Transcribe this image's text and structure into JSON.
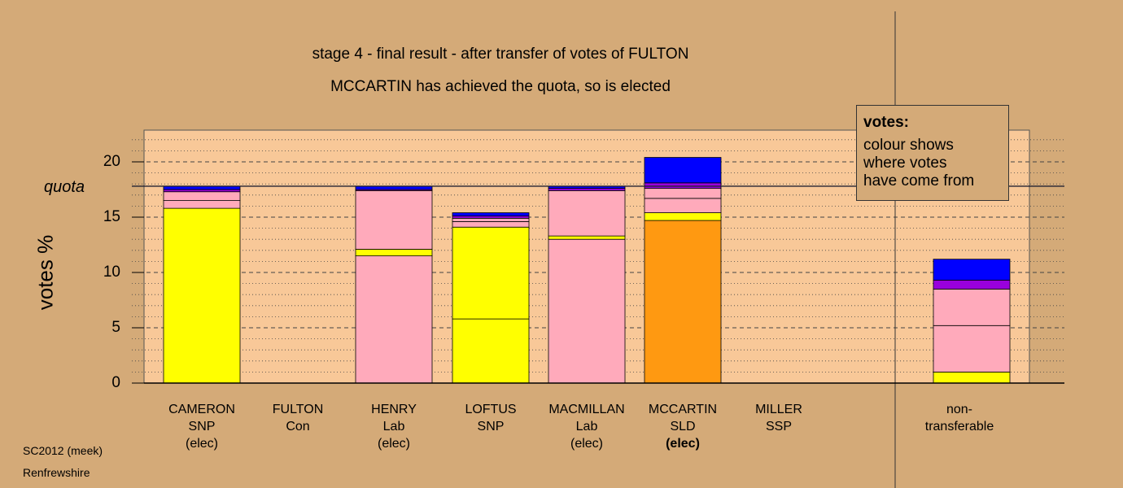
{
  "header": {
    "title": "stage 4 - final result - after transfer of votes of FULTON",
    "subtitle": "MCCARTIN has achieved the quota, so is elected"
  },
  "legend": {
    "title": "votes:",
    "lines": [
      "colour shows",
      "where votes",
      "have come from"
    ]
  },
  "footer": {
    "source": "SC2012 (meek)",
    "area": "Renfrewshire"
  },
  "colors": {
    "yellow": "#ffff00",
    "pink": "#ffaabb",
    "purple": "#9900dd",
    "blue": "#0000ff",
    "orange": "#ff9911",
    "plot_bg": "#f8c898",
    "background": "#d4aa78"
  },
  "chart_data": {
    "type": "bar",
    "stacked": true,
    "ylabel": "votes %",
    "ylim": [
      0,
      23
    ],
    "yticks": [
      0,
      5,
      10,
      15,
      20
    ],
    "quota": 17.8,
    "quota_label": "quota",
    "grid": true,
    "candidates": [
      {
        "name": "CAMERON",
        "party": "SNP",
        "status": "(elec)",
        "bold": false,
        "segments": [
          {
            "color": "yellow",
            "value": 15.8
          },
          {
            "color": "pink",
            "value": 0.7
          },
          {
            "color": "pink",
            "value": 0.8
          },
          {
            "color": "purple",
            "value": 0.2
          },
          {
            "color": "blue",
            "value": 0.3
          }
        ]
      },
      {
        "name": "FULTON",
        "party": "Con",
        "status": "",
        "bold": false,
        "segments": []
      },
      {
        "name": "HENRY",
        "party": "Lab",
        "status": "(elec)",
        "bold": false,
        "segments": [
          {
            "color": "pink",
            "value": 11.5
          },
          {
            "color": "yellow",
            "value": 0.6
          },
          {
            "color": "pink",
            "value": 5.3
          },
          {
            "color": "purple",
            "value": 0.1
          },
          {
            "color": "blue",
            "value": 0.3
          }
        ]
      },
      {
        "name": "LOFTUS",
        "party": "SNP",
        "status": "",
        "bold": false,
        "segments": [
          {
            "color": "yellow",
            "value": 5.8
          },
          {
            "color": "yellow",
            "value": 8.3
          },
          {
            "color": "pink",
            "value": 0.5
          },
          {
            "color": "pink",
            "value": 0.3
          },
          {
            "color": "purple",
            "value": 0.2
          },
          {
            "color": "blue",
            "value": 0.3
          }
        ]
      },
      {
        "name": "MACMILLAN",
        "party": "Lab",
        "status": "(elec)",
        "bold": false,
        "segments": [
          {
            "color": "pink",
            "value": 13.0
          },
          {
            "color": "yellow",
            "value": 0.3
          },
          {
            "color": "pink",
            "value": 4.1
          },
          {
            "color": "purple",
            "value": 0.2
          },
          {
            "color": "blue",
            "value": 0.2
          }
        ]
      },
      {
        "name": "MCCARTIN",
        "party": "SLD",
        "status": "(elec)",
        "bold": true,
        "segments": [
          {
            "color": "orange",
            "value": 14.7
          },
          {
            "color": "yellow",
            "value": 0.7
          },
          {
            "color": "pink",
            "value": 1.3
          },
          {
            "color": "pink",
            "value": 0.9
          },
          {
            "color": "purple",
            "value": 0.5
          },
          {
            "color": "blue",
            "value": 2.3
          }
        ]
      },
      {
        "name": "MILLER",
        "party": "SSP",
        "status": "",
        "bold": false,
        "segments": []
      }
    ],
    "nontransferable": {
      "label_line1": "non-",
      "label_line2": "transferable",
      "segments": [
        {
          "color": "yellow",
          "value": 1.0
        },
        {
          "color": "pink",
          "value": 4.2
        },
        {
          "color": "pink",
          "value": 3.3
        },
        {
          "color": "purple",
          "value": 0.8
        },
        {
          "color": "blue",
          "value": 1.9
        }
      ]
    }
  }
}
